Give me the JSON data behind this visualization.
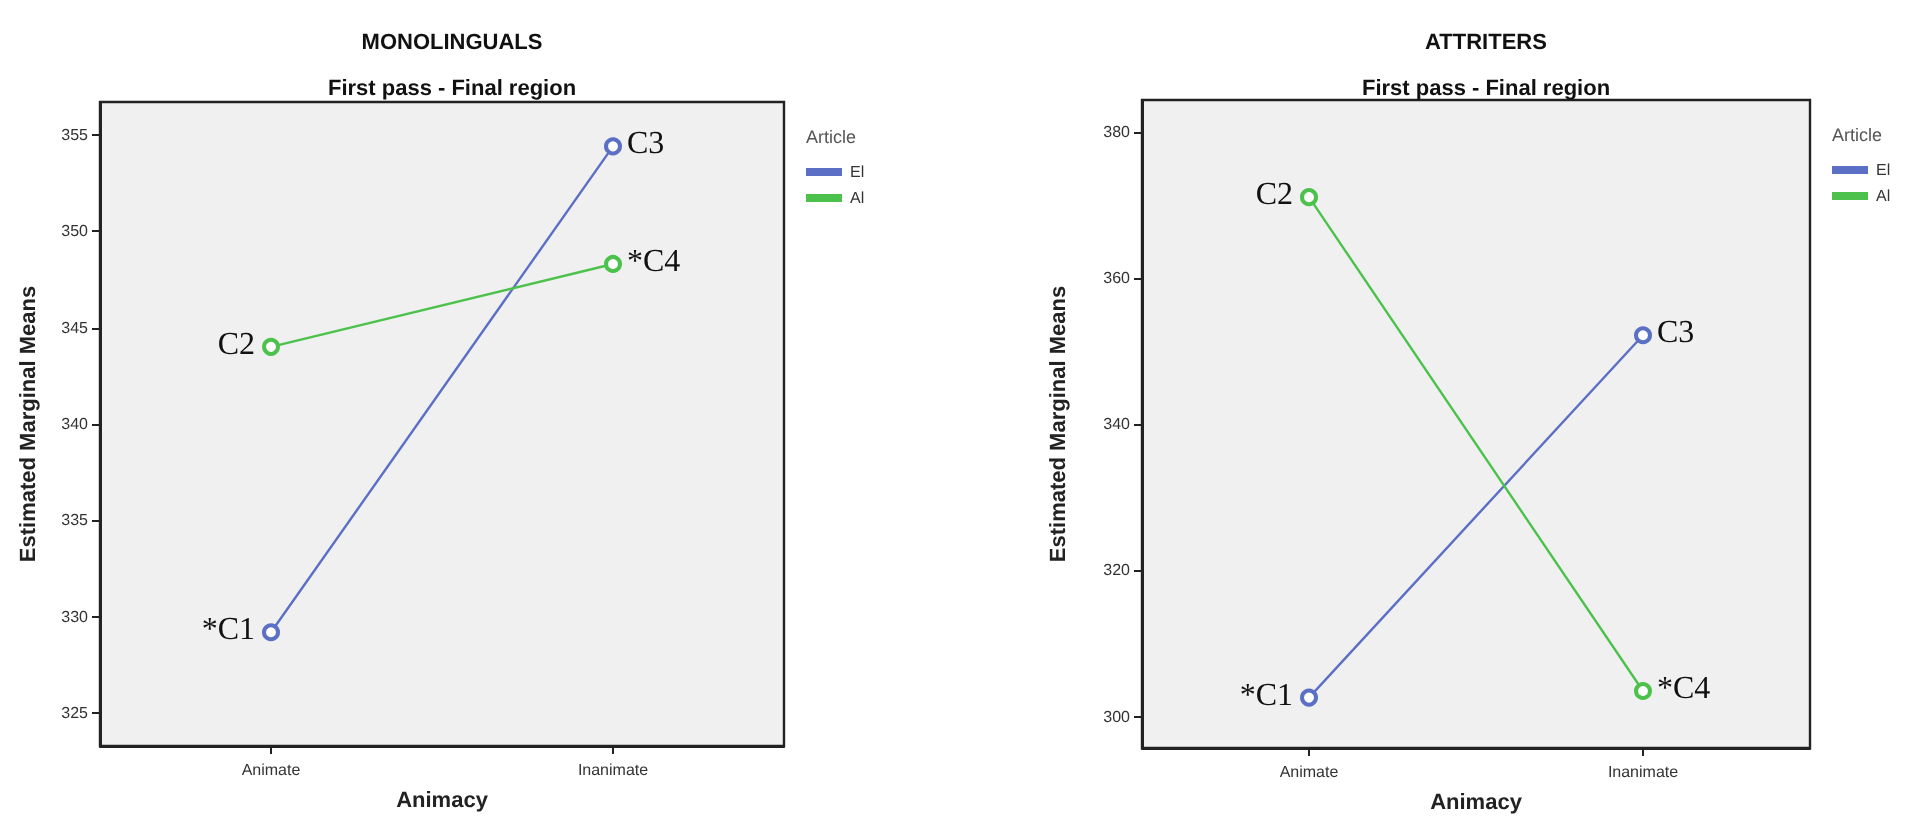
{
  "chart_data": [
    {
      "type": "line",
      "title": "MONOLINGUALS",
      "subtitle": "First pass - Final region",
      "xlabel": "Animacy",
      "ylabel": "Estimated Marginal Means",
      "legend_title": "Article",
      "categories": [
        "Animate",
        "Inanimate"
      ],
      "series": [
        {
          "name": "El",
          "color": "#5b6fc4",
          "values": [
            329.2,
            354.4
          ]
        },
        {
          "name": "Al",
          "color": "#4cc24c",
          "values": [
            344.0,
            348.3
          ]
        }
      ],
      "ylim": [
        323.3,
        356.7
      ],
      "yticks": [
        325,
        330,
        335,
        340,
        345,
        350,
        355
      ],
      "grid": false,
      "legend": "top right",
      "marker": "circle",
      "line_style": "solid",
      "annotations": [
        {
          "text": "*C1",
          "x": "Animate",
          "y": 329.2
        },
        {
          "text": "C2",
          "x": "Animate",
          "y": 344.0
        },
        {
          "text": "C3",
          "x": "Inanimate",
          "y": 354.4
        },
        {
          "text": "*C4",
          "x": "Inanimate",
          "y": 348.3
        }
      ]
    },
    {
      "type": "line",
      "title": "ATTRITERS",
      "subtitle": "First pass - Final region",
      "xlabel": "Animacy",
      "ylabel": "Estimated Marginal Means",
      "legend_title": "Article",
      "categories": [
        "Animate",
        "Inanimate"
      ],
      "series": [
        {
          "name": "El",
          "color": "#5b6fc4",
          "values": [
            302.6,
            352.2
          ]
        },
        {
          "name": "Al",
          "color": "#4cc24c",
          "values": [
            371.1,
            303.5
          ]
        }
      ],
      "ylim": [
        295.7,
        384.4
      ],
      "yticks": [
        300,
        320,
        340,
        360,
        380
      ],
      "grid": false,
      "legend": "top right",
      "marker": "circle",
      "line_style": "solid",
      "annotations": [
        {
          "text": "*C1",
          "x": "Animate",
          "y": 302.6
        },
        {
          "text": "C2",
          "x": "Animate",
          "y": 371.1
        },
        {
          "text": "C3",
          "x": "Inanimate",
          "y": 352.2
        },
        {
          "text": "*C4",
          "x": "Inanimate",
          "y": 303.5
        }
      ]
    }
  ]
}
